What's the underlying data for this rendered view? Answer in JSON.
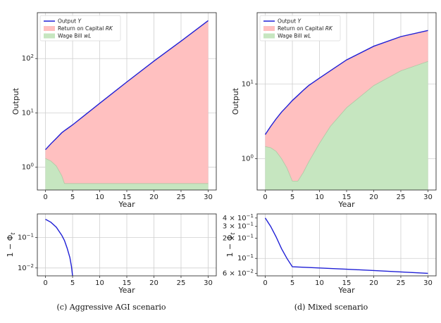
{
  "chart_data": [
    {
      "id": "c_main",
      "type": "area",
      "yscale": "log",
      "xlabel": "Year",
      "ylabel": "Output",
      "xlim": [
        -1.5,
        31.5
      ],
      "ylim": [
        0.38,
        700
      ],
      "xticks": [
        0,
        5,
        10,
        15,
        20,
        25,
        30
      ],
      "yticks": [
        {
          "v": 1,
          "b": "10",
          "e": "0"
        },
        {
          "v": 10,
          "b": "10",
          "e": "1"
        },
        {
          "v": 100,
          "b": "10",
          "e": "2"
        }
      ],
      "legend": [
        {
          "name": "Output",
          "sym": "Y",
          "color": "#1f1fd6",
          "kind": "line"
        },
        {
          "name": "Return on Capital",
          "sym": "RK",
          "color": "#ffc0c0",
          "kind": "fill"
        },
        {
          "name": "Wage Bill",
          "sym": "wL",
          "color": "#c6e6c0",
          "kind": "fill"
        }
      ],
      "x": [
        0,
        1,
        2,
        3,
        3.5,
        4,
        5,
        10,
        15,
        20,
        25,
        30
      ],
      "series": [
        {
          "name": "Output Y",
          "values": [
            2.1,
            2.7,
            3.4,
            4.3,
            4.7,
            5.1,
            6.0,
            15.0,
            37.0,
            90.0,
            210.0,
            500.0
          ]
        },
        {
          "name": "Wage Bill wL",
          "values": [
            1.45,
            1.3,
            1.05,
            0.7,
            0.5,
            0.5,
            0.5,
            0.5,
            0.5,
            0.5,
            0.5,
            0.5
          ]
        }
      ]
    },
    {
      "id": "d_main",
      "type": "area",
      "yscale": "log",
      "xlabel": "Year",
      "ylabel": "Output",
      "xlim": [
        -1.5,
        31.5
      ],
      "ylim": [
        0.38,
        90
      ],
      "xticks": [
        0,
        5,
        10,
        15,
        20,
        25,
        30
      ],
      "yticks": [
        {
          "v": 1,
          "b": "10",
          "e": "0"
        },
        {
          "v": 10,
          "b": "10",
          "e": "1"
        }
      ],
      "legend": [
        {
          "name": "Output",
          "sym": "Y",
          "color": "#1f1fd6",
          "kind": "line"
        },
        {
          "name": "Return on Capital",
          "sym": "RK",
          "color": "#ffc0c0",
          "kind": "fill"
        },
        {
          "name": "Wage Bill",
          "sym": "wL",
          "color": "#c6e6c0",
          "kind": "fill"
        }
      ],
      "x": [
        0,
        1,
        2,
        3,
        4,
        5,
        6,
        7,
        8,
        10,
        12,
        15,
        20,
        25,
        30
      ],
      "series": [
        {
          "name": "Output Y",
          "values": [
            2.1,
            2.7,
            3.4,
            4.2,
            5.0,
            6.0,
            7.0,
            8.2,
            9.5,
            12.0,
            15.0,
            21.0,
            32.0,
            43.0,
            52.0
          ]
        },
        {
          "name": "Wage Bill wL",
          "values": [
            1.45,
            1.4,
            1.25,
            1.0,
            0.75,
            0.5,
            0.5,
            0.65,
            0.9,
            1.6,
            2.7,
            4.8,
            9.5,
            15.0,
            20.0
          ]
        }
      ]
    },
    {
      "id": "c_sub",
      "type": "line",
      "yscale": "log",
      "xlabel": "Year",
      "ylabel": "1 − Φ",
      "ylabel_sub": "t",
      "xlim": [
        -1.5,
        31.5
      ],
      "ylim": [
        0.0055,
        0.6
      ],
      "xticks": [
        0,
        5,
        10,
        15,
        20,
        25,
        30
      ],
      "yticks": [
        {
          "v": 0.01,
          "b": "10",
          "e": "−2"
        },
        {
          "v": 0.1,
          "b": "10",
          "e": "−1"
        }
      ],
      "x": [
        0,
        1,
        2,
        3,
        3.5,
        4,
        4.5,
        4.8,
        5.0
      ],
      "series": [
        {
          "name": "1 − Φt",
          "color": "#1f1fd6",
          "values": [
            0.4,
            0.32,
            0.22,
            0.12,
            0.08,
            0.045,
            0.022,
            0.011,
            0.0055
          ]
        }
      ]
    },
    {
      "id": "d_sub",
      "type": "line",
      "yscale": "log",
      "xlabel": "Year",
      "ylabel": "1 − Φ",
      "ylabel_sub": "t",
      "xlim": [
        -1.5,
        31.5
      ],
      "ylim": [
        0.055,
        0.46
      ],
      "xticks": [
        0,
        5,
        10,
        15,
        20,
        25,
        30
      ],
      "yticks": [
        {
          "v": 0.4,
          "b": "4 × 10",
          "e": "−1",
          "minor": true
        },
        {
          "v": 0.3,
          "b": "3 × 10",
          "e": "−1",
          "minor": true
        },
        {
          "v": 0.2,
          "b": "2 × 10",
          "e": "−1",
          "minor": true
        },
        {
          "v": 0.1,
          "b": "10",
          "e": "−1"
        },
        {
          "v": 0.06,
          "b": "6 × 10",
          "e": "−2",
          "minor": true
        }
      ],
      "x": [
        0,
        1,
        2,
        3,
        4,
        5,
        10,
        15,
        20,
        25,
        30
      ],
      "series": [
        {
          "name": "1 − Φt",
          "color": "#1f1fd6",
          "values": [
            0.4,
            0.3,
            0.21,
            0.14,
            0.1,
            0.075,
            0.072,
            0.069,
            0.066,
            0.063,
            0.06
          ]
        }
      ]
    }
  ],
  "captions": {
    "left": "(c) Aggressive AGI scenario",
    "right": "(d) Mixed scenario"
  }
}
